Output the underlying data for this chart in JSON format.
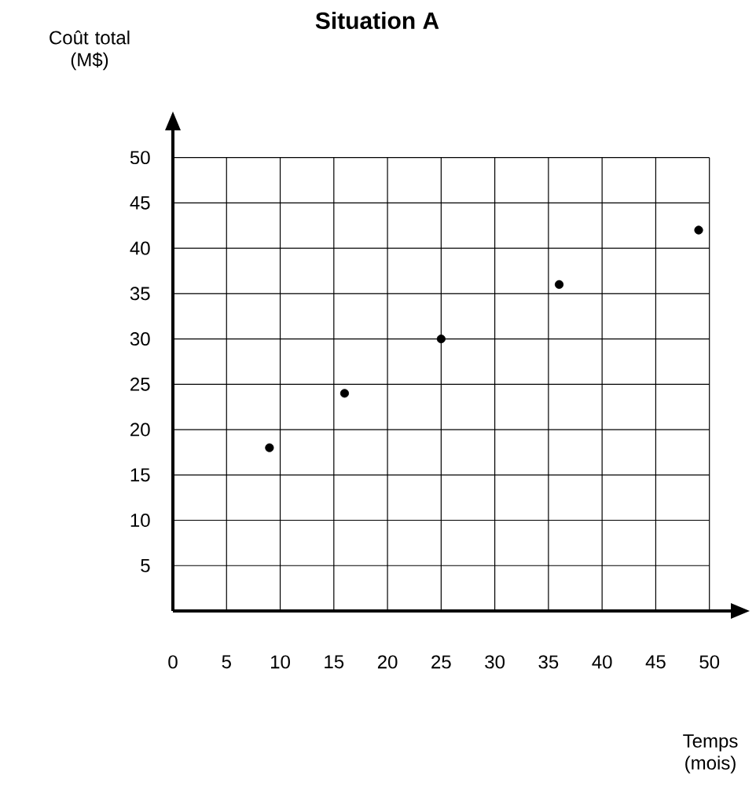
{
  "chart_data": {
    "type": "scatter",
    "title": "Situation A",
    "xlabel": "Temps (mois)",
    "ylabel": "Coût total (M$)",
    "x": [
      9,
      16,
      25,
      36,
      49
    ],
    "values": [
      18,
      24,
      30,
      36,
      42
    ],
    "color": "#000000",
    "marker": "circle",
    "grid": true,
    "xlim": [
      0,
      52
    ],
    "ylim": [
      0,
      53
    ],
    "xticks": [
      0,
      5,
      10,
      15,
      20,
      25,
      30,
      35,
      40,
      45,
      50
    ],
    "yticks": [
      5,
      10,
      15,
      20,
      25,
      30,
      35,
      40,
      45,
      50
    ]
  }
}
